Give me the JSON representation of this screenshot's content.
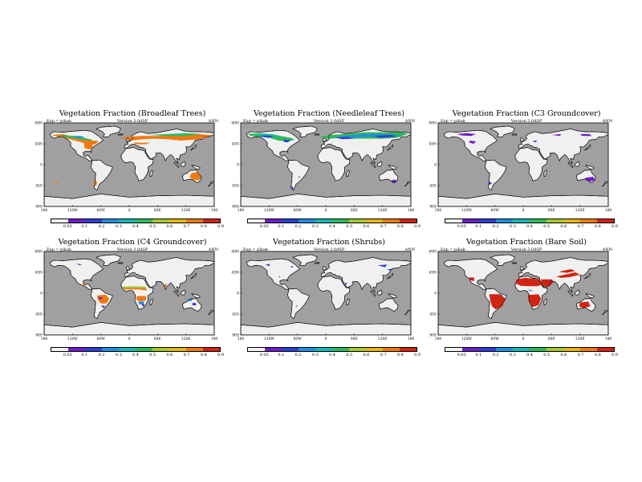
{
  "figure": {
    "panels": [
      {
        "title": "Vegetation Fraction (Broadleaf Trees)",
        "field": "broadleaf"
      },
      {
        "title": "Vegetation Fraction (Needleleaf Trees)",
        "field": "needleleaf"
      },
      {
        "title": "Vegetation Fraction (C3 Groundcover)",
        "field": "c3"
      },
      {
        "title": "Vegetation Fraction (C4 Groundcover)",
        "field": "c4"
      },
      {
        "title": "Vegetation Fraction (Shrubs)",
        "field": "shrubs"
      },
      {
        "title": "Vegetation Fraction (Bare Soil)",
        "field": "bare"
      }
    ],
    "info_left": "Exp = pikak",
    "info_center": "Version 3.0dSP",
    "info_right": "ANN",
    "lon_ticks": [
      "180",
      "120W",
      "60W",
      "0",
      "60E",
      "120E",
      "180"
    ],
    "lat_ticks": [
      "90N",
      "45N",
      "0",
      "45S",
      "90S"
    ]
  },
  "colorbar": {
    "labels": [
      "0.05",
      "0.1",
      "0.2",
      "0.3",
      "0.4",
      "0.5",
      "0.6",
      "0.7",
      "0.8",
      "0.9"
    ],
    "colors": [
      "#f2f2f2",
      "#6a1fc8",
      "#2c3fd6",
      "#1f8fe0",
      "#18b7b8",
      "#2dba5a",
      "#a6c832",
      "#e6b814",
      "#ef7a12",
      "#d22412"
    ]
  },
  "colors": {
    "ocean": "#a0a0a0",
    "land": "#f0f0f0"
  }
}
